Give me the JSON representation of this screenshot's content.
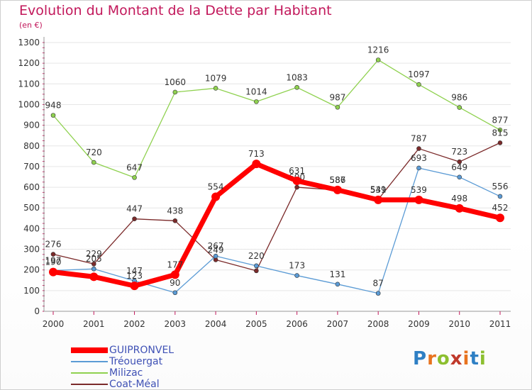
{
  "title": "Evolution du Montant de la Dette par Habitant",
  "unit_label": "(en €)",
  "logo": {
    "letters": [
      "P",
      "r",
      "o",
      "x",
      "i",
      "t",
      "i"
    ],
    "colors": [
      "#2e7fc4",
      "#e8731f",
      "#8cbf2f",
      "#c0392b",
      "#e8731f",
      "#2e7fc4",
      "#8cbf2f"
    ]
  },
  "chart_data": {
    "type": "line",
    "title": "Evolution du Montant de la Dette par Habitant",
    "ylabel": "(en €)",
    "x": [
      "2000",
      "2001",
      "2002",
      "2003",
      "2004",
      "2005",
      "2006",
      "2007",
      "2008",
      "2009",
      "2010",
      "2011"
    ],
    "ylim": [
      0,
      1300
    ],
    "yticks": [
      0,
      100,
      200,
      300,
      400,
      500,
      600,
      700,
      800,
      900,
      1000,
      1100,
      1200,
      1300
    ],
    "grid": true,
    "legend_position": "bottom-left",
    "series": [
      {
        "name": "GUIPRONVEL",
        "color": "#ff0000",
        "values": [
          190,
          167,
          123,
          177,
          554,
          713,
          631,
          587,
          539,
          539,
          498,
          452
        ],
        "labels": [
          "190",
          "",
          "123",
          "177",
          "554",
          "713",
          "631",
          "587",
          "539",
          "539",
          "498",
          "452"
        ]
      },
      {
        "name": "Tréouergat",
        "color": "#5b9bd5",
        "values": [
          197,
          205,
          147,
          90,
          267,
          220,
          173,
          131,
          87,
          693,
          649,
          556
        ],
        "labels": [
          "197",
          "205",
          "147",
          "90",
          "267",
          "220",
          "173",
          "131",
          "87",
          "693",
          "649",
          "556"
        ]
      },
      {
        "name": "Milizac",
        "color": "#8fd14f",
        "values": [
          948,
          720,
          647,
          1060,
          1079,
          1014,
          1083,
          987,
          1216,
          1097,
          986,
          877
        ],
        "labels": [
          "948",
          "720",
          "647",
          "1060",
          "1079",
          "1014",
          "1083",
          "987",
          "1216",
          "1097",
          "986",
          "877"
        ]
      },
      {
        "name": "Coat-Méal",
        "color": "#7b2a2a",
        "values": [
          276,
          229,
          447,
          438,
          249,
          196,
          600,
          586,
          541,
          787,
          723,
          815
        ],
        "labels": [
          "276",
          "229",
          "447",
          "438",
          "249",
          "",
          "600",
          "586",
          "541",
          "787",
          "723",
          "815"
        ]
      }
    ]
  }
}
